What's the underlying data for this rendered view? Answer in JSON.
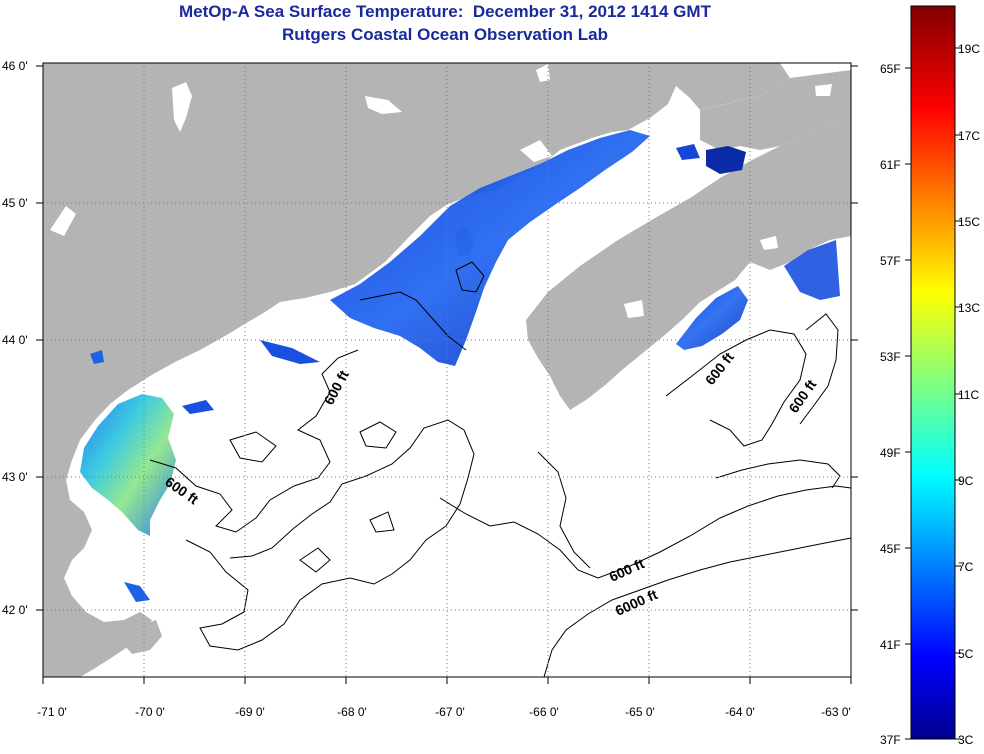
{
  "title_line1": "MetOp-A Sea Surface Temperature:  December 31, 2012 1414 GMT",
  "title_line2": "Rutgers Coastal Ocean Observation Lab",
  "map": {
    "lon_ticks": [
      "-71 0'",
      "-70 0'",
      "-69 0'",
      "-68 0'",
      "-67 0'",
      "-66 0'",
      "-65 0'",
      "-64 0'",
      "-63 0'"
    ],
    "lat_ticks": [
      "46 0'",
      "45 0'",
      "44 0'",
      "43 0'",
      "42 0'"
    ],
    "contour_labels": [
      "600 ft",
      "600 ft",
      "600 ft",
      "600 ft",
      "600 ft",
      "6000 ft"
    ],
    "colors": {
      "land": "#b4b4b4",
      "ocean": "#ffffff",
      "gridline": "#7a7a7a"
    }
  },
  "colorbar": {
    "fahrenheit_labels": [
      "65F",
      "61F",
      "57F",
      "53F",
      "49F",
      "45F",
      "41F",
      "37F"
    ],
    "celsius_labels": [
      "19C",
      "17C",
      "15C",
      "13C",
      "11C",
      "9C",
      "7C",
      "5C",
      "3C"
    ],
    "range_c": [
      3,
      20
    ],
    "scale": "jet"
  }
}
